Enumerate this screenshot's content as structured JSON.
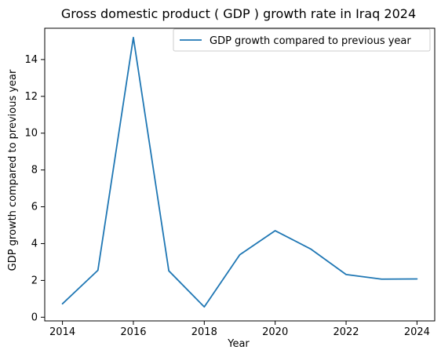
{
  "chart_data": {
    "type": "line",
    "title": "Gross domestic product ( GDP ) growth rate in Iraq 2024",
    "xlabel": "Year",
    "ylabel": "GDP growth compared to previous year",
    "x": [
      2014,
      2015,
      2016,
      2017,
      2018,
      2019,
      2020,
      2021,
      2022,
      2023,
      2024
    ],
    "series": [
      {
        "name": "GDP growth compared to previous year",
        "values": [
          0.73,
          2.55,
          15.2,
          2.52,
          0.56,
          3.39,
          4.7,
          3.71,
          2.32,
          2.07,
          2.08
        ],
        "color": "#1f77b4"
      }
    ],
    "xlim": [
      2013.5,
      2024.5
    ],
    "ylim": [
      -0.2,
      15.7
    ],
    "xticks": [
      "2014",
      "2016",
      "2018",
      "2020",
      "2022",
      "2024"
    ],
    "yticks": [
      "0",
      "2",
      "4",
      "6",
      "8",
      "10",
      "12",
      "14"
    ],
    "legend": "upper-right",
    "grid": false
  }
}
